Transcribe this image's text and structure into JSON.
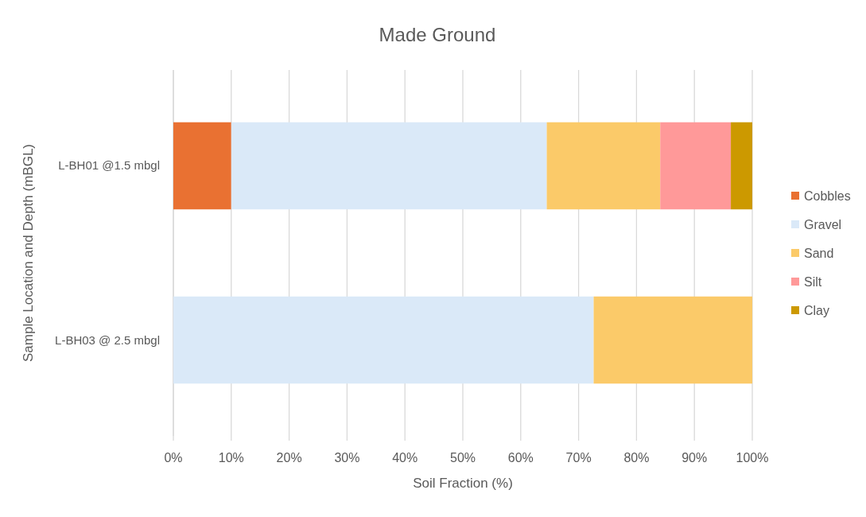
{
  "chart_data": {
    "type": "bar",
    "title": "Made Ground",
    "xlabel": "Soil Fraction (%)",
    "ylabel": "Sample Location and Depth (mBGL)",
    "orientation": "horizontal",
    "stacked": true,
    "categories": [
      "L-BH01 @1.5 mbgl",
      "L-BH03 @ 2.5 mbgl"
    ],
    "series": [
      {
        "name": "Cobbles",
        "color": "#e97132",
        "values": [
          10,
          0
        ]
      },
      {
        "name": "Gravel",
        "color": "#dae9f8",
        "values": [
          54.5,
          72.6
        ]
      },
      {
        "name": "Sand",
        "color": "#fbca69",
        "values": [
          19.6,
          27.4
        ]
      },
      {
        "name": "Silt",
        "color": "#ff9999",
        "values": [
          12.2,
          0
        ]
      },
      {
        "name": "Clay",
        "color": "#cc9900",
        "values": [
          3.7,
          0
        ]
      }
    ],
    "xlim": [
      0,
      100
    ],
    "xticks": [
      {
        "value": 0,
        "label": "0%"
      },
      {
        "value": 10,
        "label": "10%"
      },
      {
        "value": 20,
        "label": "20%"
      },
      {
        "value": 30,
        "label": "30%"
      },
      {
        "value": 40,
        "label": "40%"
      },
      {
        "value": 50,
        "label": "50%"
      },
      {
        "value": 60,
        "label": "60%"
      },
      {
        "value": 70,
        "label": "70%"
      },
      {
        "value": 80,
        "label": "80%"
      },
      {
        "value": 90,
        "label": "90%"
      },
      {
        "value": 100,
        "label": "100%"
      }
    ],
    "grid": "x",
    "legend": "right"
  }
}
